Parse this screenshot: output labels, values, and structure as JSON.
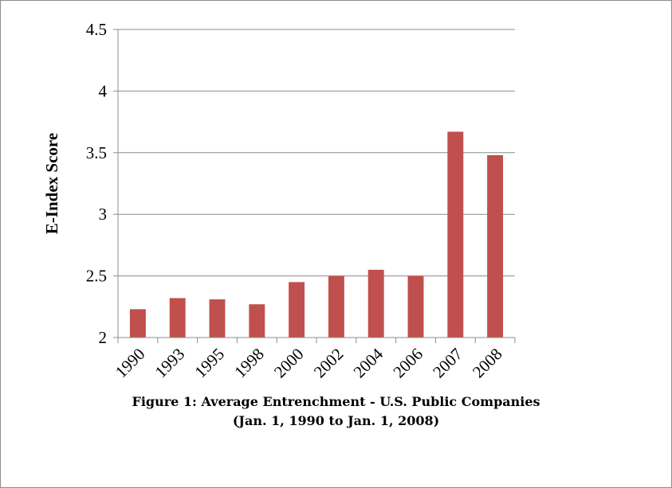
{
  "chart_data": {
    "type": "bar",
    "categories": [
      "1990",
      "1993",
      "1995",
      "1998",
      "2000",
      "2002",
      "2004",
      "2006",
      "2007",
      "2008"
    ],
    "values": [
      2.23,
      2.32,
      2.31,
      2.27,
      2.45,
      2.5,
      2.55,
      2.5,
      3.67,
      3.48
    ],
    "ylabel": "E-Index Score",
    "ylim": [
      2,
      4.5
    ],
    "yticks": [
      "2",
      "2.5",
      "3",
      "3.5",
      "4",
      "4.5"
    ],
    "grid": true,
    "bar_color": "#c0504d",
    "grid_color": "#8c8c8c"
  },
  "caption": {
    "line1": "Figure 1: Average Entrenchment - U.S. Public Companies",
    "line2": "(Jan. 1, 1990 to Jan. 1, 2008)"
  }
}
